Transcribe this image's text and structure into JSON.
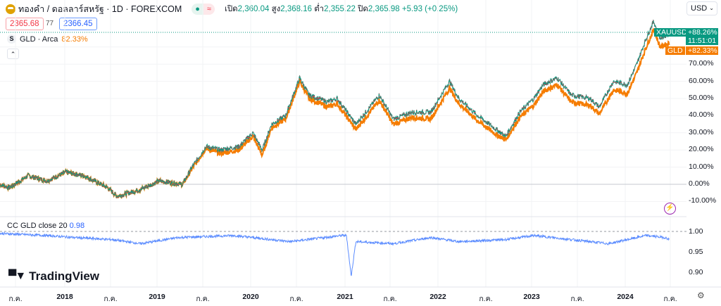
{
  "header": {
    "symbol_title": "ทองคำ / ดอลลาร์สหรัฐ · 1D · FOREXCOM",
    "status_icons": [
      "market-open-dot",
      "delayed-data-icon"
    ],
    "ohlc": [
      {
        "label": "เปิด",
        "value": "2,360.04"
      },
      {
        "label": "สูง",
        "value": "2,368.16"
      },
      {
        "label": "ต่ำ",
        "value": "2,355.22"
      },
      {
        "label": "ปิด",
        "value": "2,365.98"
      }
    ],
    "change": "+5.93 (+0.25%)"
  },
  "trade": {
    "sell": "2365.68",
    "spread": "77",
    "buy": "2366.45"
  },
  "compare": {
    "symbol": "GLD · Arca",
    "value": "82.33%",
    "icon_letter": "S"
  },
  "currency": "USD",
  "price_scale": {
    "labels": [
      "70.00%",
      "60.00%",
      "50.00%",
      "40.00%",
      "30.00%",
      "20.00%",
      "10.00%",
      "0.00%",
      "-10.00%"
    ],
    "tags": {
      "xau_symbol": "XAUUSD",
      "xau_value": "+88.26%",
      "countdown": "11:51:01",
      "gld_symbol": "GLD",
      "gld_value": "+82.33%"
    }
  },
  "indicator": {
    "label": "CC GLD close 20",
    "value": "0.98",
    "scale": [
      "1.00",
      "0.95",
      "0.90"
    ]
  },
  "brand": "TradingView",
  "time_axis": [
    "ก.ค.",
    "2018",
    "ก.ค.",
    "2019",
    "ก.ค.",
    "2020",
    "ก.ค.",
    "2021",
    "ก.ค.",
    "2022",
    "ก.ค.",
    "2023",
    "ก.ค.",
    "2024",
    "ก.ค."
  ],
  "colors": {
    "up": "#089981",
    "down": "#f23645",
    "gld": "#f57c00",
    "cc": "#5b8cff"
  },
  "chart_data": [
    {
      "type": "line",
      "ylabel": "",
      "ylim": [
        -15,
        95
      ],
      "series": [
        {
          "name": "XAUUSD",
          "x": [
            2017.4,
            2017.5,
            2017.7,
            2017.9,
            2018.1,
            2018.3,
            2018.55,
            2018.65,
            2018.9,
            2019.1,
            2019.35,
            2019.45,
            2019.6,
            2019.75,
            2019.95,
            2020.1,
            2020.2,
            2020.3,
            2020.45,
            2020.6,
            2020.7,
            2020.9,
            2021.0,
            2021.2,
            2021.35,
            2021.45,
            2021.6,
            2021.8,
            2022.0,
            2022.2,
            2022.3,
            2022.5,
            2022.7,
            2022.8,
            2022.95,
            2023.1,
            2023.2,
            2023.35,
            2023.5,
            2023.7,
            2023.8,
            2023.95,
            2024.1,
            2024.2,
            2024.3,
            2024.38,
            2024.45,
            2024.55
          ],
          "y": [
            0,
            -2,
            5,
            2,
            7,
            5,
            -2,
            -7,
            -3,
            2,
            0,
            10,
            22,
            20,
            22,
            30,
            20,
            35,
            40,
            62,
            52,
            48,
            50,
            35,
            45,
            52,
            38,
            42,
            42,
            60,
            50,
            40,
            32,
            28,
            42,
            50,
            58,
            62,
            52,
            50,
            45,
            60,
            58,
            70,
            85,
            95,
            85,
            88
          ]
        },
        {
          "name": "GLD",
          "x": [
            2017.4,
            2017.5,
            2017.7,
            2017.9,
            2018.1,
            2018.3,
            2018.55,
            2018.65,
            2018.9,
            2019.1,
            2019.35,
            2019.45,
            2019.6,
            2019.75,
            2019.95,
            2020.1,
            2020.2,
            2020.3,
            2020.45,
            2020.6,
            2020.7,
            2020.9,
            2021.0,
            2021.2,
            2021.35,
            2021.45,
            2021.6,
            2021.8,
            2022.0,
            2022.2,
            2022.3,
            2022.5,
            2022.7,
            2022.8,
            2022.95,
            2023.1,
            2023.2,
            2023.35,
            2023.5,
            2023.7,
            2023.8,
            2023.95,
            2024.1,
            2024.2,
            2024.3,
            2024.38,
            2024.45,
            2024.55
          ],
          "y": [
            0,
            -2,
            5,
            2,
            7,
            5,
            -2,
            -7,
            -3,
            2,
            0,
            9,
            21,
            18,
            20,
            28,
            17,
            33,
            38,
            60,
            50,
            45,
            47,
            32,
            42,
            49,
            35,
            39,
            38,
            56,
            47,
            37,
            29,
            26,
            39,
            46,
            54,
            58,
            48,
            46,
            41,
            55,
            53,
            65,
            80,
            90,
            80,
            82.33
          ]
        }
      ]
    },
    {
      "type": "line",
      "ylim": [
        0.88,
        1.01
      ],
      "series": [
        {
          "name": "CC GLD close 20",
          "x": [
            2017.4,
            2017.9,
            2018.2,
            2018.6,
            2018.9,
            2019.3,
            2019.9,
            2020.3,
            2020.5,
            2021.05,
            2021.1,
            2021.15,
            2021.2,
            2021.6,
            2022.0,
            2022.3,
            2022.8,
            2023.1,
            2023.9,
            2024.3,
            2024.5,
            2024.55
          ],
          "y": [
            0.995,
            0.99,
            0.985,
            0.98,
            0.97,
            0.985,
            0.99,
            0.98,
            0.975,
            0.99,
            0.99,
            0.89,
            0.975,
            0.97,
            0.985,
            0.975,
            0.98,
            0.99,
            0.97,
            0.99,
            0.985,
            0.98
          ]
        }
      ]
    }
  ]
}
